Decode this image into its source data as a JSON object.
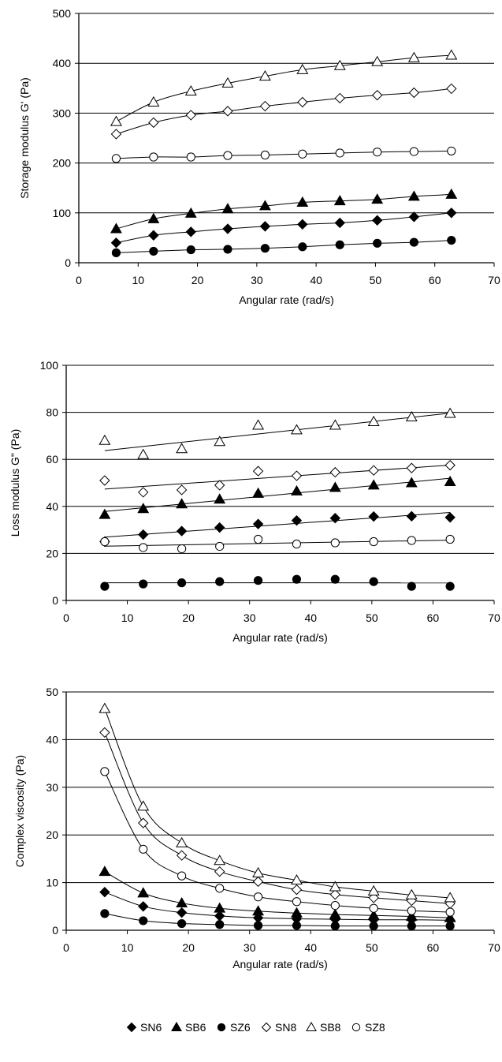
{
  "chart_data": [
    {
      "type": "scatter",
      "xlabel": "Angular rate (rad/s)",
      "ylabel": "Storage modulus G' (Pa)",
      "xlim": [
        0,
        70
      ],
      "ylim": [
        0,
        500
      ],
      "xticks": [
        0,
        10,
        20,
        30,
        40,
        50,
        60,
        70
      ],
      "yticks": [
        0,
        100,
        200,
        300,
        400,
        500
      ],
      "grid": "horizontal",
      "x": [
        6.3,
        12.6,
        18.9,
        25.1,
        31.4,
        37.7,
        44.0,
        50.3,
        56.5,
        62.8
      ],
      "series": [
        {
          "name": "SN6",
          "values": [
            40,
            55,
            62,
            68,
            73,
            77,
            80,
            85,
            92,
            100
          ]
        },
        {
          "name": "SB6",
          "values": [
            68,
            88,
            99,
            108,
            114,
            121,
            124,
            127,
            133,
            137
          ]
        },
        {
          "name": "SZ6",
          "values": [
            20,
            23,
            26,
            27,
            29,
            32,
            36,
            39,
            41,
            45
          ]
        },
        {
          "name": "SN8",
          "values": [
            258,
            281,
            296,
            304,
            314,
            322,
            330,
            336,
            341,
            349
          ]
        },
        {
          "name": "SB8",
          "values": [
            283,
            322,
            344,
            360,
            374,
            387,
            395,
            403,
            411,
            416
          ]
        },
        {
          "name": "SZ8",
          "values": [
            209,
            212,
            212,
            215,
            216,
            218,
            220,
            222,
            223,
            224
          ]
        }
      ]
    },
    {
      "type": "scatter",
      "xlabel": "Angular rate (rad/s)",
      "ylabel": "Loss modulus G\" (Pa)",
      "xlim": [
        0,
        70
      ],
      "ylim": [
        0,
        100
      ],
      "xticks": [
        0,
        10,
        20,
        30,
        40,
        50,
        60,
        70
      ],
      "yticks": [
        0,
        20,
        40,
        60,
        80,
        100
      ],
      "grid": "horizontal",
      "x": [
        6.3,
        12.6,
        18.9,
        25.1,
        31.4,
        37.7,
        44.0,
        50.3,
        56.5,
        62.8
      ],
      "series": [
        {
          "name": "SN6",
          "values": [
            25,
            28,
            29.5,
            31,
            32.5,
            34,
            35,
            35.7,
            35.8,
            35.3
          ]
        },
        {
          "name": "SB6",
          "values": [
            36.5,
            39,
            41,
            43,
            45.5,
            46.5,
            48,
            49,
            50,
            50.5
          ]
        },
        {
          "name": "SZ6",
          "values": [
            6,
            7,
            7.5,
            8,
            8.5,
            9,
            9,
            8,
            6,
            6
          ]
        },
        {
          "name": "SN8",
          "values": [
            51,
            46,
            47,
            49,
            55,
            53,
            54.5,
            55.3,
            56.3,
            57.5
          ]
        },
        {
          "name": "SB8",
          "values": [
            68,
            62,
            64.5,
            67.5,
            74.5,
            72.5,
            74.5,
            76,
            78,
            79.5
          ]
        },
        {
          "name": "SZ8",
          "values": [
            25,
            22.5,
            22,
            23,
            26,
            24,
            24.5,
            25,
            25.5,
            26
          ]
        }
      ]
    },
    {
      "type": "scatter",
      "xlabel": "Angular rate (rad/s)",
      "ylabel": "Complex viscosity (Pa)",
      "xlim": [
        0,
        70
      ],
      "ylim": [
        0,
        50
      ],
      "xticks": [
        0,
        10,
        20,
        30,
        40,
        50,
        60,
        70
      ],
      "yticks": [
        0,
        10,
        20,
        30,
        40,
        50
      ],
      "grid": "horizontal",
      "x": [
        6.3,
        12.6,
        18.9,
        25.1,
        31.4,
        37.7,
        44.0,
        50.3,
        56.5,
        62.8
      ],
      "series": [
        {
          "name": "SN6",
          "values": [
            8.0,
            5.0,
            3.7,
            3.0,
            2.6,
            2.4,
            2.3,
            2.2,
            2.2,
            2.1
          ]
        },
        {
          "name": "SB6",
          "values": [
            12.3,
            7.8,
            5.7,
            4.6,
            4.0,
            3.6,
            3.3,
            3.1,
            2.9,
            2.6
          ]
        },
        {
          "name": "SZ6",
          "values": [
            3.5,
            2.0,
            1.4,
            1.2,
            1.0,
            1.0,
            0.9,
            0.9,
            0.9,
            0.9
          ]
        },
        {
          "name": "SN8",
          "values": [
            41.5,
            22.5,
            15.7,
            12.3,
            10.2,
            8.5,
            7.5,
            6.8,
            6.2,
            5.6
          ]
        },
        {
          "name": "SB8",
          "values": [
            46.5,
            26.0,
            18.3,
            14.6,
            12.0,
            10.5,
            9.1,
            8.2,
            7.4,
            6.8
          ]
        },
        {
          "name": "SZ8",
          "values": [
            33.3,
            17.0,
            11.4,
            8.8,
            7.0,
            6.0,
            5.2,
            4.6,
            4.1,
            3.8
          ]
        }
      ]
    }
  ],
  "legend": {
    "items": [
      {
        "label": "SN6",
        "marker": "diamond-filled"
      },
      {
        "label": "SB6",
        "marker": "triangle-filled"
      },
      {
        "label": "SZ6",
        "marker": "circle-filled"
      },
      {
        "label": "SN8",
        "marker": "diamond-open"
      },
      {
        "label": "SB8",
        "marker": "triangle-open"
      },
      {
        "label": "SZ8",
        "marker": "circle-open"
      }
    ]
  }
}
